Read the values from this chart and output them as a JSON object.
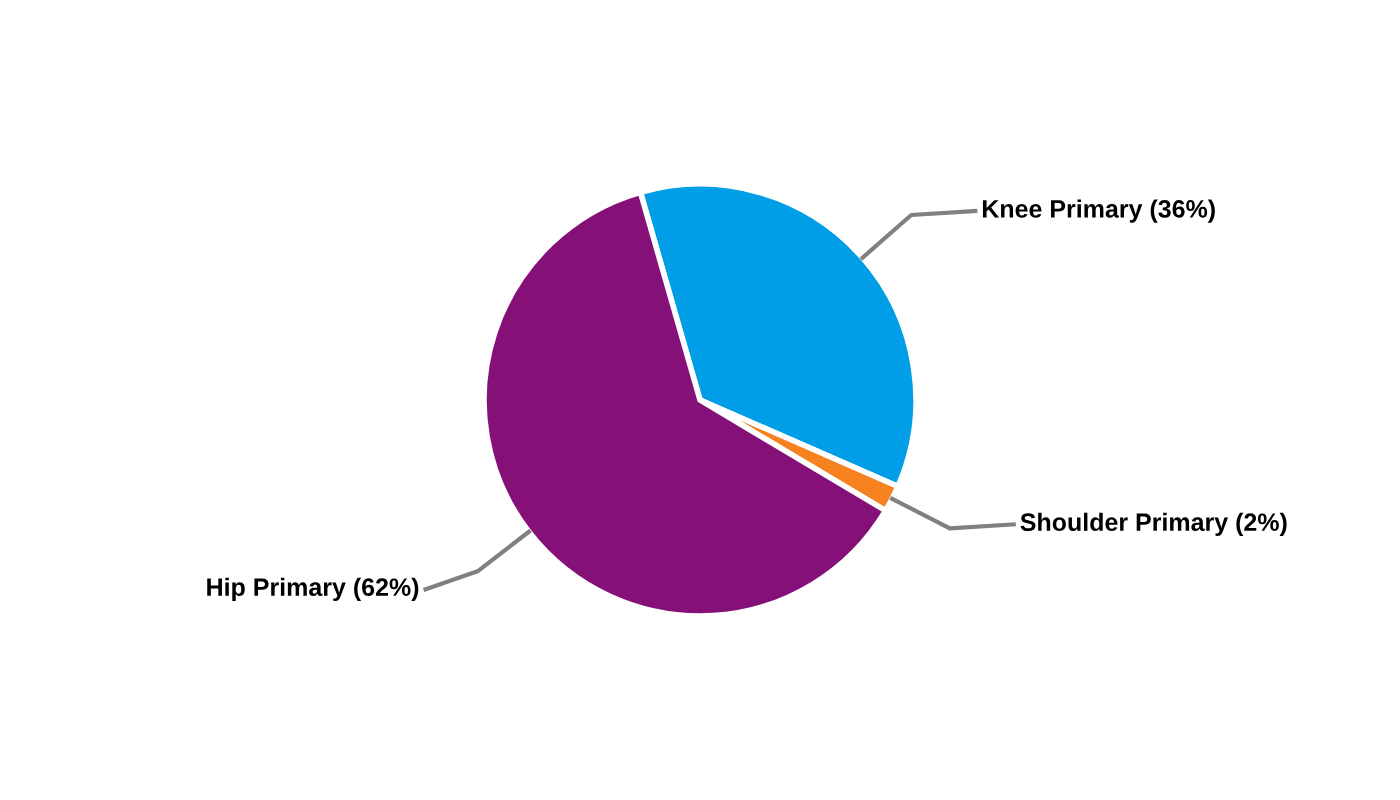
{
  "chart_data": {
    "type": "pie",
    "categories": [
      "Knee Primary (36%)",
      "Shoulder Primary (2%)",
      "Hip Primary (62%)"
    ],
    "values": [
      36,
      2,
      62
    ],
    "colors": [
      "#009ee6",
      "#f5821f",
      "#851078"
    ],
    "legend": false
  }
}
